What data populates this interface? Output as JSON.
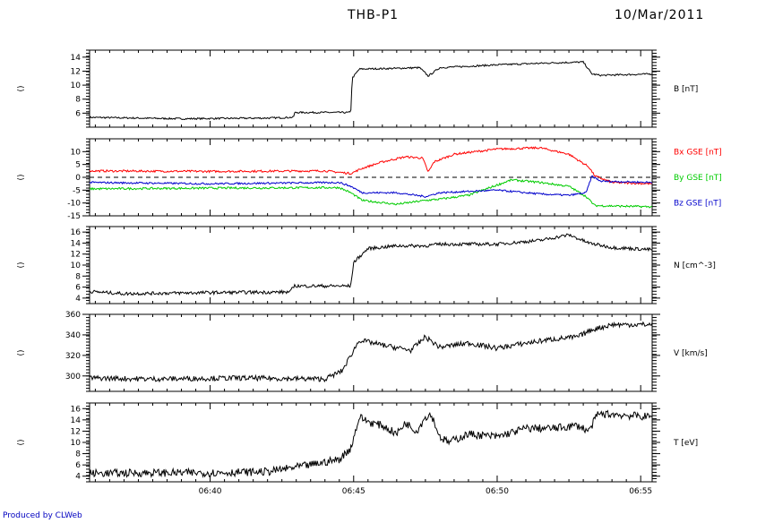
{
  "header": {
    "title": "THB-P1",
    "date": "10/Mar/2011"
  },
  "footer": {
    "credit": "Produced by CLWeb"
  },
  "colors": {
    "bx": "#ff0000",
    "by": "#00cc00",
    "bz": "#0000cc",
    "trace": "#000000",
    "credit": "#0000c0"
  },
  "chart_data": {
    "type": "line",
    "x_range_minutes": [
      35.8,
      55.4
    ],
    "x_ticks": [
      {
        "value": 40,
        "label": "06:40"
      },
      {
        "value": 45,
        "label": "06:45"
      },
      {
        "value": 50,
        "label": "06:50"
      },
      {
        "value": 55,
        "label": "06:55"
      }
    ],
    "x_minor_step": 0.5,
    "panels": [
      {
        "id": "b",
        "left_label": "()",
        "ylim": [
          4,
          15
        ],
        "yticks": [
          6,
          8,
          10,
          12,
          14
        ],
        "series": [
          {
            "label": "B [nT]",
            "color": "#000000",
            "noise": 0.12,
            "x": [
              35.8,
              39.0,
              42.0,
              42.9,
              42.95,
              44.9,
              44.95,
              45.2,
              46.5,
              47.3,
              47.6,
              48.0,
              50.0,
              52.0,
              53.0,
              53.3,
              53.6,
              55.4
            ],
            "y": [
              5.4,
              5.2,
              5.3,
              5.4,
              6.1,
              6.1,
              11.0,
              12.3,
              12.4,
              12.5,
              11.3,
              12.5,
              12.9,
              13.2,
              13.3,
              11.6,
              11.4,
              11.6
            ]
          }
        ]
      },
      {
        "id": "bgse",
        "left_label": "()",
        "ylim": [
          -15,
          15
        ],
        "yticks": [
          -15,
          -10,
          -5,
          0,
          5,
          10
        ],
        "zero_line": true,
        "series": [
          {
            "label": "Bx GSE [nT]",
            "color": "#ff0000",
            "noise": 0.4,
            "x": [
              35.8,
              40.0,
              44.0,
              44.9,
              45.3,
              46.0,
              46.8,
              47.4,
              47.6,
              47.8,
              48.5,
              50.0,
              51.5,
              52.5,
              53.2,
              53.4,
              54.0,
              55.4
            ],
            "y": [
              2.5,
              2.3,
              2.5,
              1.5,
              3.5,
              6.0,
              8.0,
              7.5,
              2.0,
              6.0,
              9.0,
              11.0,
              11.5,
              9.0,
              4.0,
              0.5,
              -2.0,
              -2.5
            ]
          },
          {
            "label": "By GSE [nT]",
            "color": "#00cc00",
            "noise": 0.4,
            "x": [
              35.8,
              40.0,
              44.5,
              44.9,
              45.3,
              46.5,
              47.5,
              48.0,
              49.0,
              50.0,
              50.5,
              51.5,
              52.5,
              53.1,
              53.4,
              55.4
            ],
            "y": [
              -4.5,
              -4.2,
              -4.0,
              -6.0,
              -9.0,
              -10.5,
              -9.0,
              -8.5,
              -7.0,
              -3.0,
              -1.0,
              -2.0,
              -3.5,
              -7.5,
              -11.0,
              -11.5
            ]
          },
          {
            "label": "Bz GSE [nT]",
            "color": "#0000cc",
            "noise": 0.35,
            "x": [
              35.8,
              40.0,
              44.5,
              44.9,
              45.3,
              46.5,
              47.5,
              48.0,
              49.0,
              50.0,
              51.5,
              52.5,
              53.1,
              53.3,
              53.6,
              55.4
            ],
            "y": [
              -2.0,
              -2.5,
              -2.0,
              -3.5,
              -6.0,
              -6.0,
              -7.5,
              -6.0,
              -5.5,
              -5.0,
              -6.5,
              -7.0,
              -6.0,
              0.5,
              -1.5,
              -2.0
            ]
          }
        ]
      },
      {
        "id": "n",
        "left_label": "()",
        "ylim": [
          3,
          17
        ],
        "yticks": [
          4,
          6,
          8,
          10,
          12,
          14,
          16
        ],
        "series": [
          {
            "label": "N [cm^-3]",
            "color": "#000000",
            "noise": 0.3,
            "x": [
              35.8,
              37.0,
              40.0,
              42.8,
              42.9,
              44.9,
              45.0,
              45.5,
              46.5,
              47.5,
              48.0,
              50.0,
              51.5,
              52.5,
              53.2,
              54.0,
              55.4
            ],
            "y": [
              5.2,
              4.8,
              5.0,
              5.1,
              6.2,
              6.2,
              10.5,
              13.0,
              13.5,
              13.5,
              13.8,
              13.8,
              14.5,
              15.5,
              14.0,
              13.2,
              12.8
            ]
          }
        ]
      },
      {
        "id": "v",
        "left_label": "()",
        "ylim": [
          285,
          360
        ],
        "yticks": [
          300,
          320,
          340,
          360
        ],
        "series": [
          {
            "label": "V [km/s]",
            "color": "#000000",
            "noise": 2.5,
            "x": [
              35.8,
              38.0,
              41.0,
              44.0,
              44.6,
              44.9,
              45.2,
              46.0,
              47.0,
              47.5,
              48.0,
              49.0,
              50.0,
              51.0,
              52.0,
              52.8,
              53.3,
              54.0,
              55.4
            ],
            "y": [
              298,
              297,
              298,
              297,
              305,
              320,
              335,
              330,
              325,
              338,
              328,
              332,
              327,
              332,
              336,
              338,
              345,
              350,
              350
            ]
          }
        ]
      },
      {
        "id": "t",
        "left_label": "()",
        "ylim": [
          3,
          17
        ],
        "yticks": [
          4,
          6,
          8,
          10,
          12,
          14,
          16
        ],
        "series": [
          {
            "label": "T [eV]",
            "color": "#000000",
            "noise": 0.7,
            "x": [
              35.8,
              38.0,
              40.0,
              42.0,
              43.5,
              44.5,
              44.9,
              45.2,
              45.6,
              46.0,
              46.5,
              46.8,
              47.2,
              47.5,
              47.7,
              48.0,
              48.3,
              49.0,
              50.0,
              51.0,
              52.0,
              52.8,
              53.2,
              53.5,
              54.0,
              55.4
            ],
            "y": [
              4.5,
              4.6,
              4.6,
              4.8,
              6.0,
              7.0,
              9.0,
              14.5,
              13.5,
              13.0,
              11.5,
              13.5,
              12.0,
              14.5,
              15.0,
              11.0,
              10.0,
              11.5,
              11.0,
              12.5,
              12.5,
              13.0,
              12.0,
              15.0,
              15.0,
              14.5
            ]
          }
        ]
      }
    ]
  }
}
